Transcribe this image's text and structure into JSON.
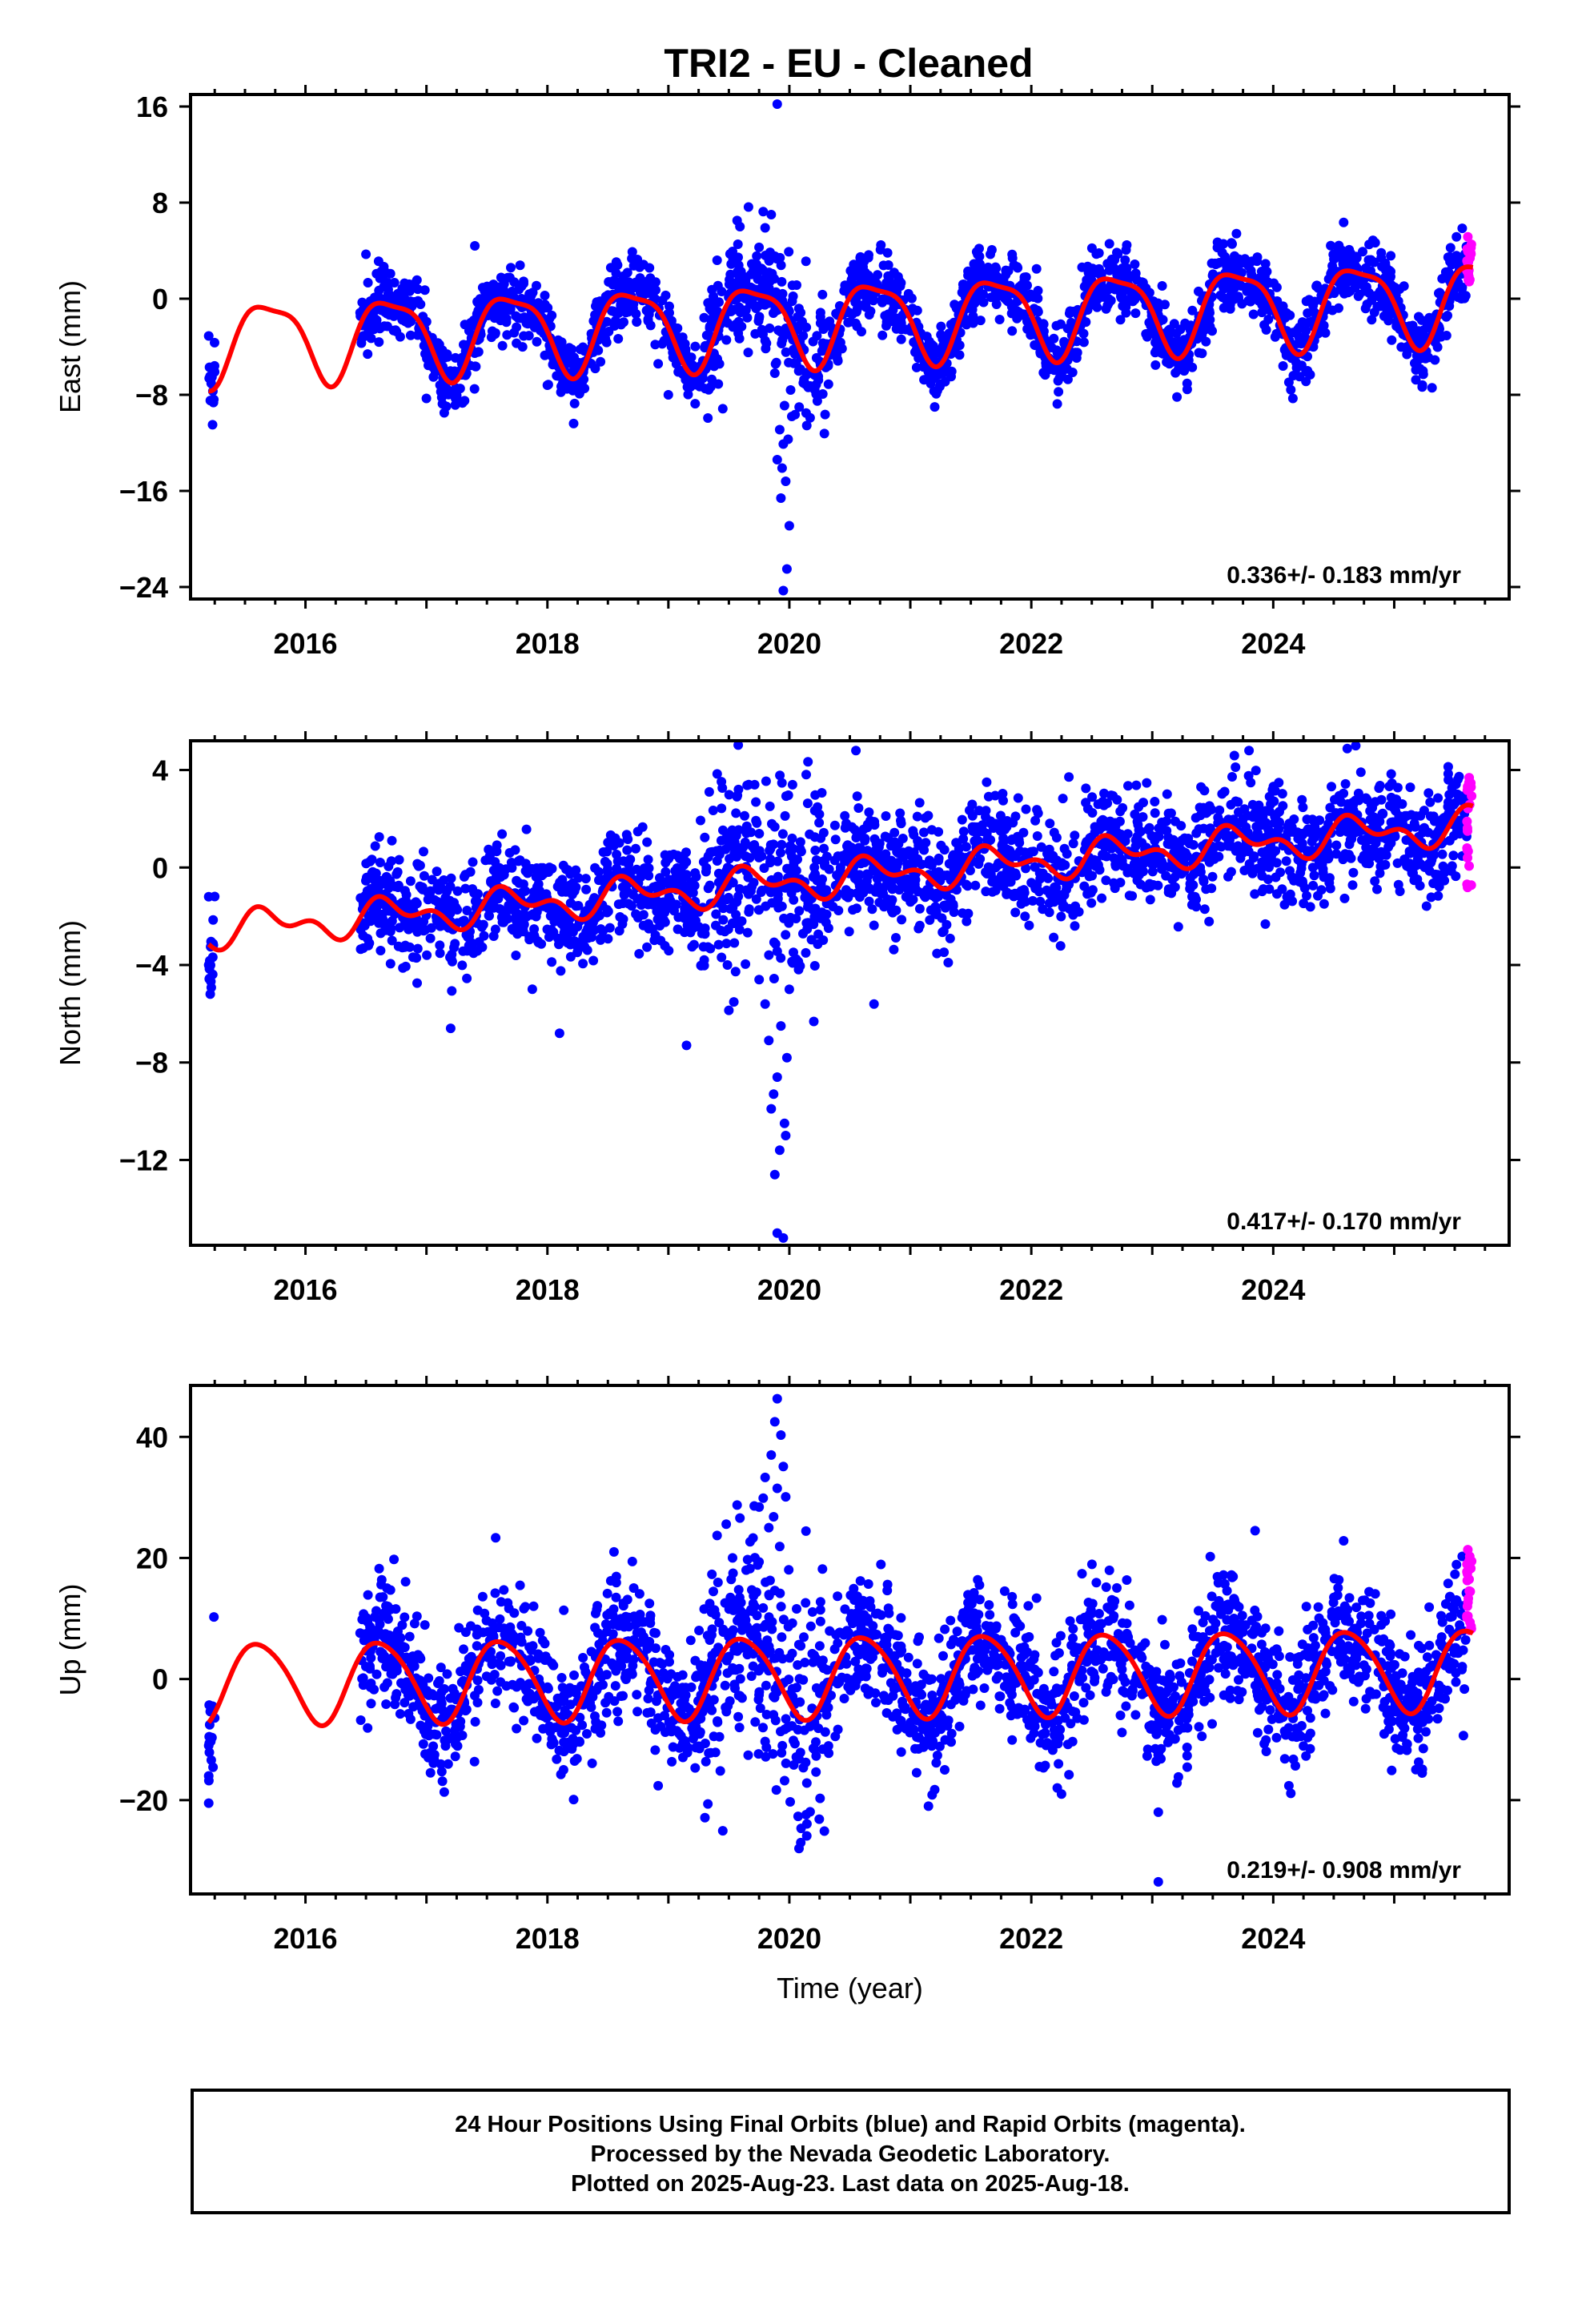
{
  "title": "TRI2  - EU - Cleaned",
  "footer": {
    "lines": [
      "24 Hour Positions Using Final Orbits (blue) and Rapid Orbits (magenta).",
      "Processed by the Nevada Geodetic Laboratory.",
      "Plotted on 2025-Aug-23. Last data on 2025-Aug-18."
    ]
  },
  "colors": {
    "final": "#0000ff",
    "rapid": "#ff00ff",
    "model": "#ff0000",
    "frame": "#000000"
  },
  "chart_data": [
    {
      "type": "scatter",
      "component": "East",
      "ylabel": "East (mm)",
      "xlabel": "",
      "xlim": [
        2015.05,
        2025.95
      ],
      "ylim": [
        -25,
        17
      ],
      "xticks": [
        2016,
        2018,
        2020,
        2022,
        2024
      ],
      "yticks": [
        16,
        8,
        0,
        -8,
        -16,
        -24
      ],
      "yticklabels": [
        "16",
        "8",
        "0",
        "−8",
        "−16",
        "−24"
      ],
      "rate": "0.336+/- 0.183 mm/yr",
      "model": {
        "start": 2015.2,
        "end": 2025.65,
        "offset": -1.9,
        "trend": 0.336,
        "annual_amp": 3.3,
        "phase_year": 2015.45,
        "semi_amp": 0.9,
        "semi_phase_year": 2015.35,
        "ref_year": 2020.0,
        "pre_offset": 2016.45,
        "pre_amp_boost": 0
      },
      "series_final": {
        "segments": [
          [
            2015.2,
            2015.25
          ],
          [
            2016.45,
            2025.6
          ]
        ],
        "noise": 1.4,
        "points_per_year": 260,
        "extra": [
          [
            2019.9,
            16.2
          ],
          [
            2019.95,
            -24.3
          ],
          [
            2019.98,
            -22.5
          ],
          [
            2020.0,
            -18.9
          ],
          [
            2019.93,
            -16.6
          ],
          [
            2019.97,
            -15.2
          ],
          [
            2019.9,
            -13.4
          ],
          [
            2019.95,
            -12.1
          ],
          [
            2019.92,
            -10.9
          ],
          [
            2020.02,
            -9.8
          ],
          [
            2019.96,
            -8.9
          ],
          [
            2019.99,
            -11.7
          ],
          [
            2019.94,
            -14.1
          ],
          [
            2020.01,
            -7.6
          ],
          [
            2019.88,
            -6.2
          ],
          [
            2019.85,
            7.0
          ],
          [
            2019.8,
            5.9
          ],
          [
            2015.2,
            -3.1
          ],
          [
            2017.0,
            -8.3
          ],
          [
            2018.0,
            -7.2
          ],
          [
            2019.0,
            -8.0
          ],
          [
            2016.5,
            3.7
          ],
          [
            2017.4,
            4.4
          ]
        ]
      },
      "series_rapid": {
        "start": 2025.6,
        "end": 2025.64,
        "count": 22,
        "center": 3.2,
        "spread": 2.0
      }
    },
    {
      "type": "scatter",
      "component": "North",
      "ylabel": "North (mm)",
      "xlabel": "",
      "xlim": [
        2015.05,
        2025.95
      ],
      "ylim": [
        -15.5,
        5.2
      ],
      "xticks": [
        2016,
        2018,
        2020,
        2022,
        2024
      ],
      "yticks": [
        4,
        0,
        -4,
        -8,
        -12
      ],
      "yticklabels": [
        "4",
        "0",
        "−4",
        "−8",
        "−12"
      ],
      "rate": "0.417+/- 0.170 mm/yr",
      "model": {
        "start": 2015.2,
        "end": 2025.65,
        "offset": -0.6,
        "trend": 0.417,
        "annual_amp": 0.55,
        "phase_year": 2015.45,
        "semi_amp": 0.4,
        "semi_phase_year": 2015.45,
        "ref_year": 2020.0,
        "pre_offset": 2016.45,
        "pre_amp_boost": 0
      },
      "series_final": {
        "segments": [
          [
            2015.2,
            2015.25
          ],
          [
            2016.45,
            2025.6
          ]
        ],
        "noise": 1.1,
        "points_per_year": 260,
        "extra": [
          [
            2019.95,
            -15.2
          ],
          [
            2019.9,
            -15.0
          ],
          [
            2019.88,
            -12.6
          ],
          [
            2019.92,
            -11.6
          ],
          [
            2019.96,
            -10.5
          ],
          [
            2019.85,
            -9.9
          ],
          [
            2019.9,
            -8.6
          ],
          [
            2019.98,
            -7.8
          ],
          [
            2019.83,
            -7.1
          ],
          [
            2019.93,
            -6.5
          ],
          [
            2019.8,
            -5.6
          ],
          [
            2020.0,
            -5.0
          ],
          [
            2019.75,
            -4.6
          ],
          [
            2019.87,
            -9.3
          ],
          [
            2019.97,
            -11.0
          ],
          [
            2018.1,
            -6.8
          ],
          [
            2017.2,
            -6.6
          ],
          [
            2019.15,
            -7.3
          ],
          [
            2020.55,
            4.8
          ],
          [
            2023.8,
            4.8
          ],
          [
            2020.7,
            -5.6
          ],
          [
            2015.2,
            -4.0
          ],
          [
            2015.2,
            -1.2
          ]
        ]
      },
      "series_rapid": {
        "start": 2025.6,
        "end": 2025.64,
        "count": 22,
        "center": 1.2,
        "spread": 2.6
      }
    },
    {
      "type": "scatter",
      "component": "Up",
      "ylabel": "Up (mm)",
      "xlabel": "Time (year)",
      "xlim": [
        2015.05,
        2025.95
      ],
      "ylim": [
        -35.5,
        48.5
      ],
      "xticks": [
        2016,
        2018,
        2020,
        2022,
        2024
      ],
      "yticks": [
        40,
        20,
        0,
        -20
      ],
      "yticklabels": [
        "40",
        "20",
        "0",
        "−20"
      ],
      "rate": "0.219+/- 0.908 mm/yr",
      "model": {
        "start": 2015.2,
        "end": 2025.65,
        "offset": 0.5,
        "trend": 0.219,
        "annual_amp": 6.7,
        "phase_year": 2015.37,
        "semi_amp": 0.8,
        "semi_phase_year": 2015.3,
        "ref_year": 2020.0,
        "pre_offset": 2016.45,
        "pre_amp_boost": 0
      },
      "series_final": {
        "segments": [
          [
            2015.2,
            2015.25
          ],
          [
            2016.45,
            2025.6
          ]
        ],
        "noise": 5.2,
        "points_per_year": 260,
        "extra": [
          [
            2019.9,
            46.3
          ],
          [
            2019.88,
            42.5
          ],
          [
            2019.93,
            40.3
          ],
          [
            2019.85,
            37.0
          ],
          [
            2019.95,
            35.1
          ],
          [
            2019.8,
            33.3
          ],
          [
            2019.9,
            31.5
          ],
          [
            2019.97,
            30.1
          ],
          [
            2019.75,
            28.4
          ],
          [
            2019.87,
            26.8
          ],
          [
            2019.83,
            25.0
          ],
          [
            2019.7,
            23.3
          ],
          [
            2019.92,
            21.9
          ],
          [
            2020.08,
            -28.0
          ],
          [
            2023.05,
            -33.5
          ],
          [
            2023.05,
            -22.0
          ],
          [
            2018.55,
            21.0
          ],
          [
            2023.85,
            24.5
          ],
          [
            2015.2,
            -20.5
          ],
          [
            2015.2,
            -16.0
          ],
          [
            2015.2,
            -11.0
          ],
          [
            2021.15,
            -21.0
          ],
          [
            2022.25,
            -19.0
          ]
        ]
      },
      "series_rapid": {
        "start": 2025.6,
        "end": 2025.64,
        "count": 22,
        "center": 15.0,
        "spread": 7.0
      }
    }
  ]
}
